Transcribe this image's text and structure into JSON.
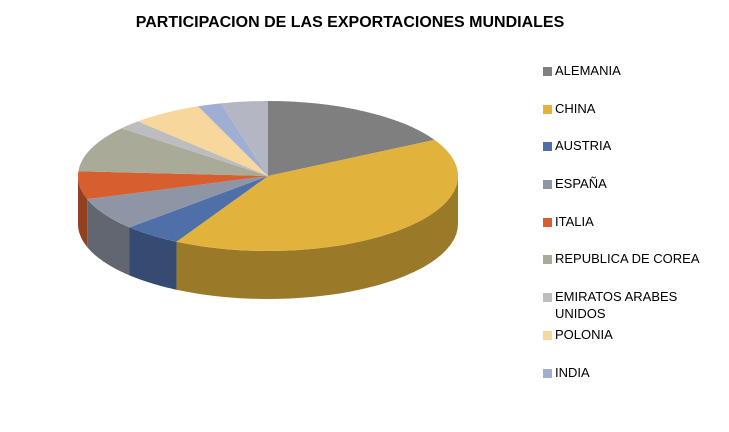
{
  "chart_data": {
    "type": "pie3d",
    "title": "PARTICIPACION DE LAS EXPORTACIONES MUNDIALES",
    "categories": [
      "ALEMANIA",
      "CHINA",
      "AUSTRIA",
      "ESPAÑA",
      "ITALIA",
      "REPUBLICA DE COREA",
      "EMIRATOS ARABES UNIDOS",
      "POLONIA",
      "INDIA",
      null
    ],
    "values": [
      17,
      41,
      5,
      7,
      6,
      10,
      2,
      6,
      2,
      4
    ],
    "colors": [
      "#7f7f7f",
      "#e2b33c",
      "#4f6fa8",
      "#8e96a6",
      "#d75f2f",
      "#a9ab98",
      "#bdbdbf",
      "#f7d79b",
      "#9eafd3",
      "#b4b6c4"
    ],
    "legend": "right"
  }
}
